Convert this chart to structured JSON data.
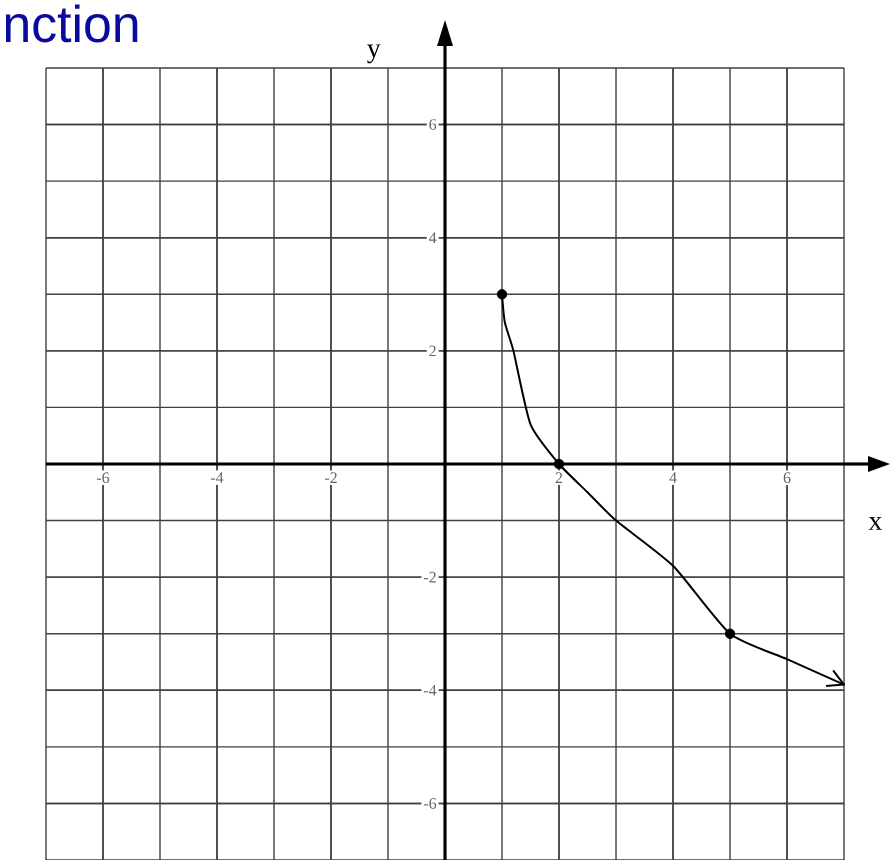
{
  "chart_data": {
    "type": "line",
    "title": "nction",
    "xlabel": "x",
    "ylabel": "y",
    "xlim": [
      -7,
      7
    ],
    "ylim": [
      -7,
      7
    ],
    "xticks": [
      -6,
      -4,
      -2,
      2,
      4,
      6
    ],
    "yticks": [
      -6,
      -4,
      -2,
      2,
      4,
      6
    ],
    "grid": true,
    "series": [
      {
        "color": "#000000",
        "marker": "none",
        "x": [
          1,
          1.05,
          1.2,
          1.5,
          2,
          2.5,
          3,
          4,
          5,
          6,
          7
        ],
        "values": [
          3,
          2.5,
          2,
          0.7,
          0,
          -0.5,
          -1,
          -1.8,
          -3,
          -3.45,
          -3.9
        ]
      },
      {
        "type": "scatter",
        "color": "#000000",
        "marker": "circle",
        "x": [
          1,
          2,
          5
        ],
        "values": [
          3,
          0,
          -3
        ]
      }
    ]
  }
}
